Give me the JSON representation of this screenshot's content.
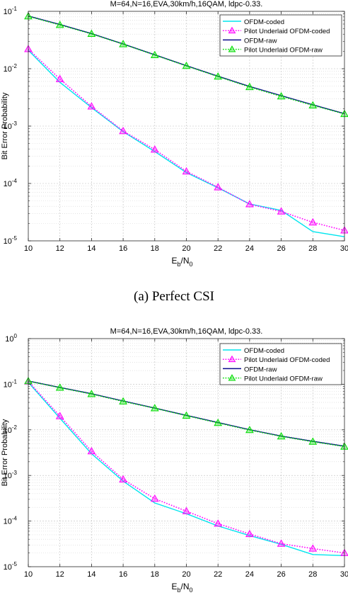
{
  "chart_data": [
    {
      "type": "line",
      "caption_tag": "(a)",
      "caption_text": "Perfect CSI",
      "title": "M=64,N=16,EVA,30km/h,16QAM, ldpc-0.33.",
      "xlabel_main": "E",
      "xlabel_sub1": "b",
      "xlabel_mid": "/N",
      "xlabel_sub2": "0",
      "ylabel": "Bit Error Probability",
      "yscale": "log",
      "xlim": [
        10,
        30
      ],
      "ylim_exp": [
        -5,
        -1
      ],
      "x_ticks": [
        "10",
        "12",
        "14",
        "16",
        "18",
        "20",
        "22",
        "24",
        "26",
        "28",
        "30"
      ],
      "y_ticks": [
        {
          "base": "10",
          "exp": "-5"
        },
        {
          "base": "10",
          "exp": "-4"
        },
        {
          "base": "10",
          "exp": "-3"
        },
        {
          "base": "10",
          "exp": "-2"
        },
        {
          "base": "10",
          "exp": "-1"
        }
      ],
      "grid": true,
      "legend_position": "top-right",
      "x": [
        10,
        12,
        14,
        16,
        18,
        20,
        22,
        24,
        26,
        28,
        30
      ],
      "series": [
        {
          "name": "OFDM-coded",
          "color": "#00e5ee",
          "dash": "solid",
          "marker": "none",
          "values": [
            0.021,
            0.0058,
            0.0021,
            0.0008,
            0.00036,
            0.000155,
            8.4e-05,
            4.4e-05,
            3.4e-05,
            1.45e-05,
            1.18e-05
          ]
        },
        {
          "name": "Pilot Underlaid OFDM-coded",
          "color": "#ff00ff",
          "dash": "dotted",
          "marker": "triangle",
          "values": [
            0.022,
            0.0066,
            0.0022,
            0.00082,
            0.00039,
            0.000162,
            8.6e-05,
            4.35e-05,
            3.25e-05,
            2.1e-05,
            1.52e-05
          ]
        },
        {
          "name": "OFDM-raw",
          "color": "#0a0a8c",
          "dash": "solid",
          "marker": "none",
          "values": [
            0.083,
            0.059,
            0.041,
            0.027,
            0.0175,
            0.0113,
            0.0074,
            0.0049,
            0.0034,
            0.00235,
            0.00165
          ]
        },
        {
          "name": "Pilot Underlaid OFDM-raw",
          "color": "#00dd00",
          "dash": "dotted",
          "marker": "triangle",
          "values": [
            0.082,
            0.058,
            0.0405,
            0.0268,
            0.0173,
            0.0112,
            0.0073,
            0.0048,
            0.0033,
            0.0023,
            0.00163
          ]
        }
      ]
    },
    {
      "type": "line",
      "caption_tag": "",
      "caption_text": "",
      "title": "M=64,N=16,EVA,30km/h,16QAM, ldpc-0.33.",
      "xlabel_main": "E",
      "xlabel_sub1": "b",
      "xlabel_mid": "/N",
      "xlabel_sub2": "0",
      "ylabel": "Bit Error Probability",
      "yscale": "log",
      "xlim": [
        10,
        30
      ],
      "ylim_exp": [
        -5,
        0
      ],
      "x_ticks": [
        "10",
        "12",
        "14",
        "16",
        "18",
        "20",
        "22",
        "24",
        "26",
        "28",
        "30"
      ],
      "y_ticks": [
        {
          "base": "10",
          "exp": "-5"
        },
        {
          "base": "10",
          "exp": "-4"
        },
        {
          "base": "10",
          "exp": "-3"
        },
        {
          "base": "10",
          "exp": "-2"
        },
        {
          "base": "10",
          "exp": "-1"
        },
        {
          "base": "10",
          "exp": "0"
        }
      ],
      "grid": true,
      "legend_position": "top-right",
      "x": [
        10,
        12,
        14,
        16,
        18,
        20,
        22,
        24,
        26,
        28,
        30
      ],
      "series": [
        {
          "name": "OFDM-coded",
          "color": "#00e5ee",
          "dash": "solid",
          "marker": "none",
          "values": [
            0.11,
            0.018,
            0.003,
            0.00075,
            0.00025,
            0.000145,
            7.8e-05,
            4.8e-05,
            3.1e-05,
            1.85e-05,
            1.75e-05
          ]
        },
        {
          "name": "Pilot Underlaid OFDM-coded",
          "color": "#ff00ff",
          "dash": "dotted",
          "marker": "triangle",
          "values": [
            0.115,
            0.02,
            0.0034,
            0.00082,
            0.00031,
            0.000165,
            8.8e-05,
            5.2e-05,
            3.2e-05,
            2.5e-05,
            2e-05
          ]
        },
        {
          "name": "OFDM-raw",
          "color": "#0a0a8c",
          "dash": "solid",
          "marker": "none",
          "values": [
            0.118,
            0.085,
            0.062,
            0.043,
            0.03,
            0.0208,
            0.0145,
            0.0101,
            0.0073,
            0.0056,
            0.0044
          ]
        },
        {
          "name": "Pilot Underlaid OFDM-raw",
          "color": "#00dd00",
          "dash": "dotted",
          "marker": "triangle",
          "values": [
            0.117,
            0.084,
            0.061,
            0.042,
            0.0298,
            0.0205,
            0.0142,
            0.0099,
            0.0072,
            0.0055,
            0.0043
          ]
        }
      ]
    }
  ]
}
